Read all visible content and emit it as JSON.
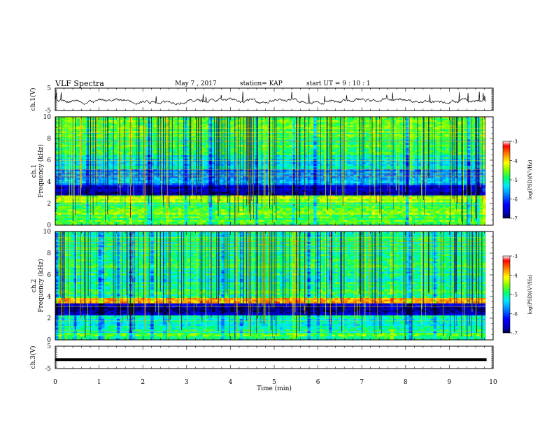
{
  "header": {
    "title": "VLF Spectra",
    "date": "May 7 , 2017",
    "station": "station= KAP",
    "start": "start UT = 9 : 10 : 1"
  },
  "chart_data": [
    {
      "type": "line",
      "ylabel": "ch.1(V)",
      "ylim": [
        -5,
        5
      ],
      "yticks": [
        5,
        -5
      ],
      "xlim": [
        0,
        10
      ],
      "series": [
        {
          "trace": "noisy waveform around -0.5 V with spikes up to about +3 V"
        }
      ]
    },
    {
      "type": "heatmap",
      "ylabel": "ch.1\nFrequency (kHz)",
      "ylim": [
        0,
        10
      ],
      "yticks": [
        0,
        2,
        4,
        6,
        8,
        10
      ],
      "xlim": [
        0,
        9.83
      ],
      "colorbar": {
        "label": "log(PSD)(V²/Hz)",
        "ticks": [
          -3,
          -4,
          -5,
          -6,
          -7
        ],
        "range": [
          -7,
          -3
        ]
      }
    },
    {
      "type": "heatmap",
      "ylabel": "ch.2\nFrequency (kHz)",
      "ylim": [
        0,
        10
      ],
      "yticks": [
        0,
        2,
        4,
        6,
        8,
        10
      ],
      "xlim": [
        0,
        9.83
      ],
      "colorbar": {
        "label": "log(PSD)(V²/Hz)",
        "ticks": [
          -3,
          -4,
          -5,
          -6,
          -7
        ],
        "range": [
          -7,
          -3
        ]
      }
    },
    {
      "type": "line",
      "ylabel": "ch.3(V)",
      "ylim": [
        -5,
        5
      ],
      "yticks": [
        5,
        -5
      ],
      "xlim": [
        0,
        10
      ],
      "series": [
        {
          "trace": "flat line at about -1 V",
          "value": -1
        }
      ]
    }
  ],
  "xaxis": {
    "label": "Time (min)",
    "ticks": [
      0,
      1,
      2,
      3,
      4,
      5,
      6,
      7,
      8,
      9,
      10
    ],
    "range": [
      0,
      10
    ]
  }
}
